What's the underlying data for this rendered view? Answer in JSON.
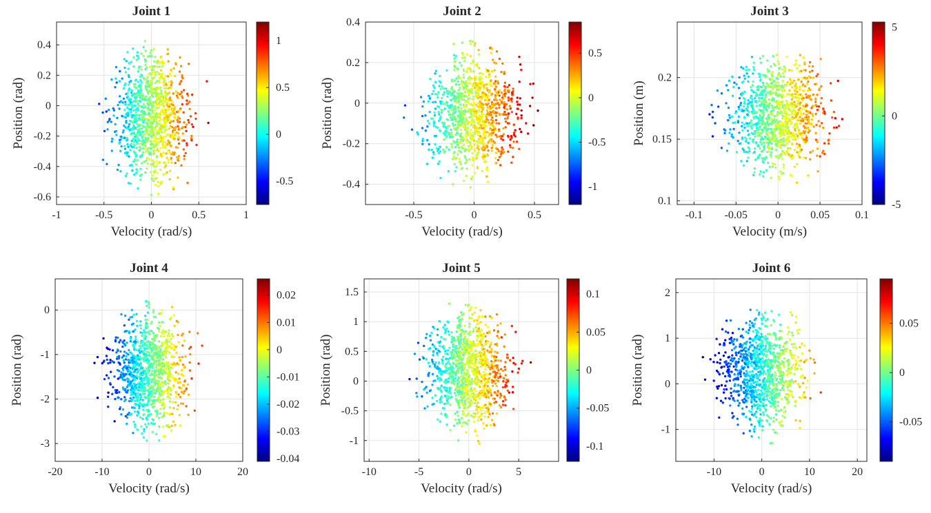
{
  "colormap": "jet",
  "chart_data": [
    {
      "type": "scatter",
      "title": "Joint 1",
      "xlabel": "Velocity (rad/s)",
      "ylabel": "Position (rad)",
      "xlim": [
        -1,
        1
      ],
      "ylim": [
        -0.65,
        0.55
      ],
      "xticks": [
        -1,
        -0.5,
        0,
        0.5,
        1
      ],
      "xtick_labels": [
        "-1",
        "-0.5",
        "0",
        "0.5",
        "1"
      ],
      "yticks": [
        -0.6,
        -0.4,
        -0.2,
        0,
        0.2,
        0.4
      ],
      "ytick_labels": [
        "-0.6",
        "-0.4",
        "-0.2",
        "0",
        "0.2",
        "0.4"
      ],
      "colorbar": {
        "range": [
          -0.75,
          1.2
        ],
        "ticks": [
          -0.5,
          0,
          0.5,
          1
        ],
        "tick_labels": [
          "-0.5",
          "0",
          "0.5",
          "1"
        ]
      },
      "data_extent": {
        "x": [
          -0.8,
          0.7
        ],
        "y": [
          -0.62,
          0.47
        ]
      },
      "grid": true
    },
    {
      "type": "scatter",
      "title": "Joint 2",
      "xlabel": "Velocity (rad/s)",
      "ylabel": "Position (rad)",
      "xlim": [
        -0.9,
        0.7
      ],
      "ylim": [
        -0.5,
        0.4
      ],
      "xticks": [
        -0.5,
        0,
        0.5
      ],
      "xtick_labels": [
        "-0.5",
        "0",
        "0.5"
      ],
      "yticks": [
        -0.4,
        -0.2,
        0,
        0.2,
        0.4
      ],
      "ytick_labels": [
        "-0.4",
        "-0.2",
        "0",
        "0.2",
        "0.4"
      ],
      "colorbar": {
        "range": [
          -1.2,
          0.85
        ],
        "ticks": [
          -1,
          -0.5,
          0,
          0.5
        ],
        "tick_labels": [
          "-1",
          "-0.5",
          "0",
          "0.5"
        ]
      },
      "data_extent": {
        "x": [
          -0.88,
          0.58
        ],
        "y": [
          -0.44,
          0.33
        ]
      },
      "grid": true
    },
    {
      "type": "scatter",
      "title": "Joint 3",
      "xlabel": "Velocity (m/s)",
      "ylabel": "Position (m)",
      "xlim": [
        -0.12,
        0.1
      ],
      "ylim": [
        0.097,
        0.245
      ],
      "xticks": [
        -0.1,
        -0.05,
        0,
        0.05,
        0.1
      ],
      "xtick_labels": [
        "-0.1",
        "-0.05",
        "0",
        "0.05",
        "0.1"
      ],
      "yticks": [
        0.1,
        0.15,
        0.2
      ],
      "ytick_labels": [
        "0.1",
        "0.15",
        "0.2"
      ],
      "colorbar": {
        "range": [
          -5,
          5.3
        ],
        "ticks": [
          -5,
          0,
          5
        ],
        "tick_labels": [
          "-5",
          "0",
          "5"
        ]
      },
      "data_extent": {
        "x": [
          -0.12,
          0.1
        ],
        "y": [
          0.11,
          0.228
        ]
      },
      "grid": true
    },
    {
      "type": "scatter",
      "title": "Joint 4",
      "xlabel": "Velocity (rad/s)",
      "ylabel": "Position (rad)",
      "xlim": [
        -20,
        20
      ],
      "ylim": [
        -3.4,
        0.7
      ],
      "xticks": [
        -20,
        -10,
        0,
        10,
        20
      ],
      "xtick_labels": [
        "-20",
        "-10",
        "0",
        "10",
        "20"
      ],
      "yticks": [
        -3,
        -2,
        -1,
        0
      ],
      "ytick_labels": [
        "-3",
        "-2",
        "-1",
        "0"
      ],
      "colorbar": {
        "range": [
          -0.041,
          0.026
        ],
        "ticks": [
          -0.04,
          -0.03,
          -0.02,
          -0.01,
          0,
          0.01,
          0.02
        ],
        "tick_labels": [
          "-0.04",
          "-0.03",
          "-0.02",
          "-0.01",
          "0",
          "0.01",
          "0.02"
        ]
      },
      "data_extent": {
        "x": [
          -13,
          16
        ],
        "y": [
          -3.05,
          0.3
        ]
      },
      "grid": true
    },
    {
      "type": "scatter",
      "title": "Joint 5",
      "xlabel": "Velocity (rad/s)",
      "ylabel": "Position (rad)",
      "xlim": [
        -10.5,
        9
      ],
      "ylim": [
        -1.35,
        1.72
      ],
      "xticks": [
        -10,
        -5,
        0,
        5
      ],
      "xtick_labels": [
        "-10",
        "-5",
        "0",
        "5"
      ],
      "yticks": [
        -1,
        -0.5,
        0,
        0.5,
        1,
        1.5
      ],
      "ytick_labels": [
        "-1",
        "-0.5",
        "0",
        "0.5",
        "1",
        "1.5"
      ],
      "colorbar": {
        "range": [
          -0.12,
          0.12
        ],
        "ticks": [
          -0.1,
          -0.05,
          0,
          0.05,
          0.1
        ],
        "tick_labels": [
          "-0.1",
          "-0.05",
          "0",
          "0.05",
          "0.1"
        ]
      },
      "data_extent": {
        "x": [
          -9,
          7
        ],
        "y": [
          -1.12,
          1.42
        ]
      },
      "grid": true
    },
    {
      "type": "scatter",
      "title": "Joint 6",
      "xlabel": "Velocity (rad/s)",
      "ylabel": "Position (rad)",
      "xlim": [
        -18,
        22
      ],
      "ylim": [
        -1.7,
        2.3
      ],
      "xticks": [
        -10,
        0,
        10,
        20
      ],
      "xtick_labels": [
        "-10",
        "0",
        "10",
        "20"
      ],
      "yticks": [
        -1,
        0,
        1,
        2
      ],
      "ytick_labels": [
        "-1",
        "0",
        "1",
        "2"
      ],
      "colorbar": {
        "range": [
          -0.09,
          0.095
        ],
        "ticks": [
          -0.05,
          0,
          0.05
        ],
        "tick_labels": [
          "-0.05",
          "0",
          "0.05"
        ]
      },
      "data_extent": {
        "x": [
          -13,
          20
        ],
        "y": [
          -1.4,
          1.88
        ]
      },
      "grid": true
    }
  ]
}
